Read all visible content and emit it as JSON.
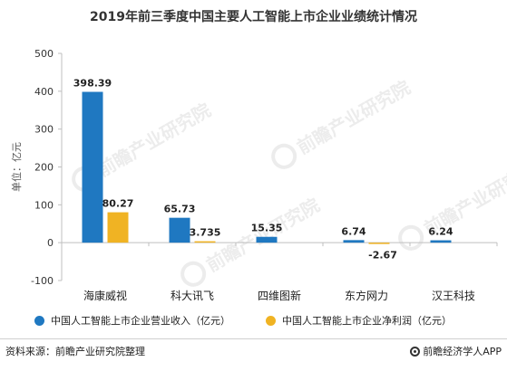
{
  "title": "2019年前三季度中国主要人工智能上市企业业绩统计情况",
  "watermark": "前瞻产业研究院",
  "footer": {
    "source": "资料来源：前瞻产业研究院整理",
    "brand": "前瞻经济学人APP"
  },
  "colors": {
    "revenue": "#1f78c1",
    "profit": "#f0b323",
    "axis": "#bfbfbf",
    "text": "#333333"
  },
  "chart_data": {
    "type": "bar",
    "title": "2019年前三季度中国主要人工智能上市企业业绩统计情况",
    "xlabel": "",
    "ylabel": "单位：亿元",
    "ylim": [
      -100,
      500
    ],
    "yticks": [
      -100,
      0,
      100,
      200,
      300,
      400,
      500
    ],
    "grid": false,
    "legend_position": "bottom",
    "categories": [
      "海康威视",
      "科大讯飞",
      "四维图新",
      "东方网力",
      "汉王科技"
    ],
    "series": [
      {
        "name": "中国人工智能上市企业营业收入（亿元）",
        "values": [
          398.39,
          65.73,
          15.35,
          6.74,
          6.24
        ],
        "labels": [
          "398.39",
          "65.73",
          "15.35",
          "6.74",
          "6.24"
        ],
        "color": "#1f78c1"
      },
      {
        "name": "中国人工智能上市企业净利润（亿元）",
        "values": [
          80.27,
          3.735,
          null,
          -2.67,
          null
        ],
        "labels": [
          "80.27",
          "3.735",
          "",
          "-2.67",
          ""
        ],
        "color": "#f0b323"
      }
    ]
  }
}
